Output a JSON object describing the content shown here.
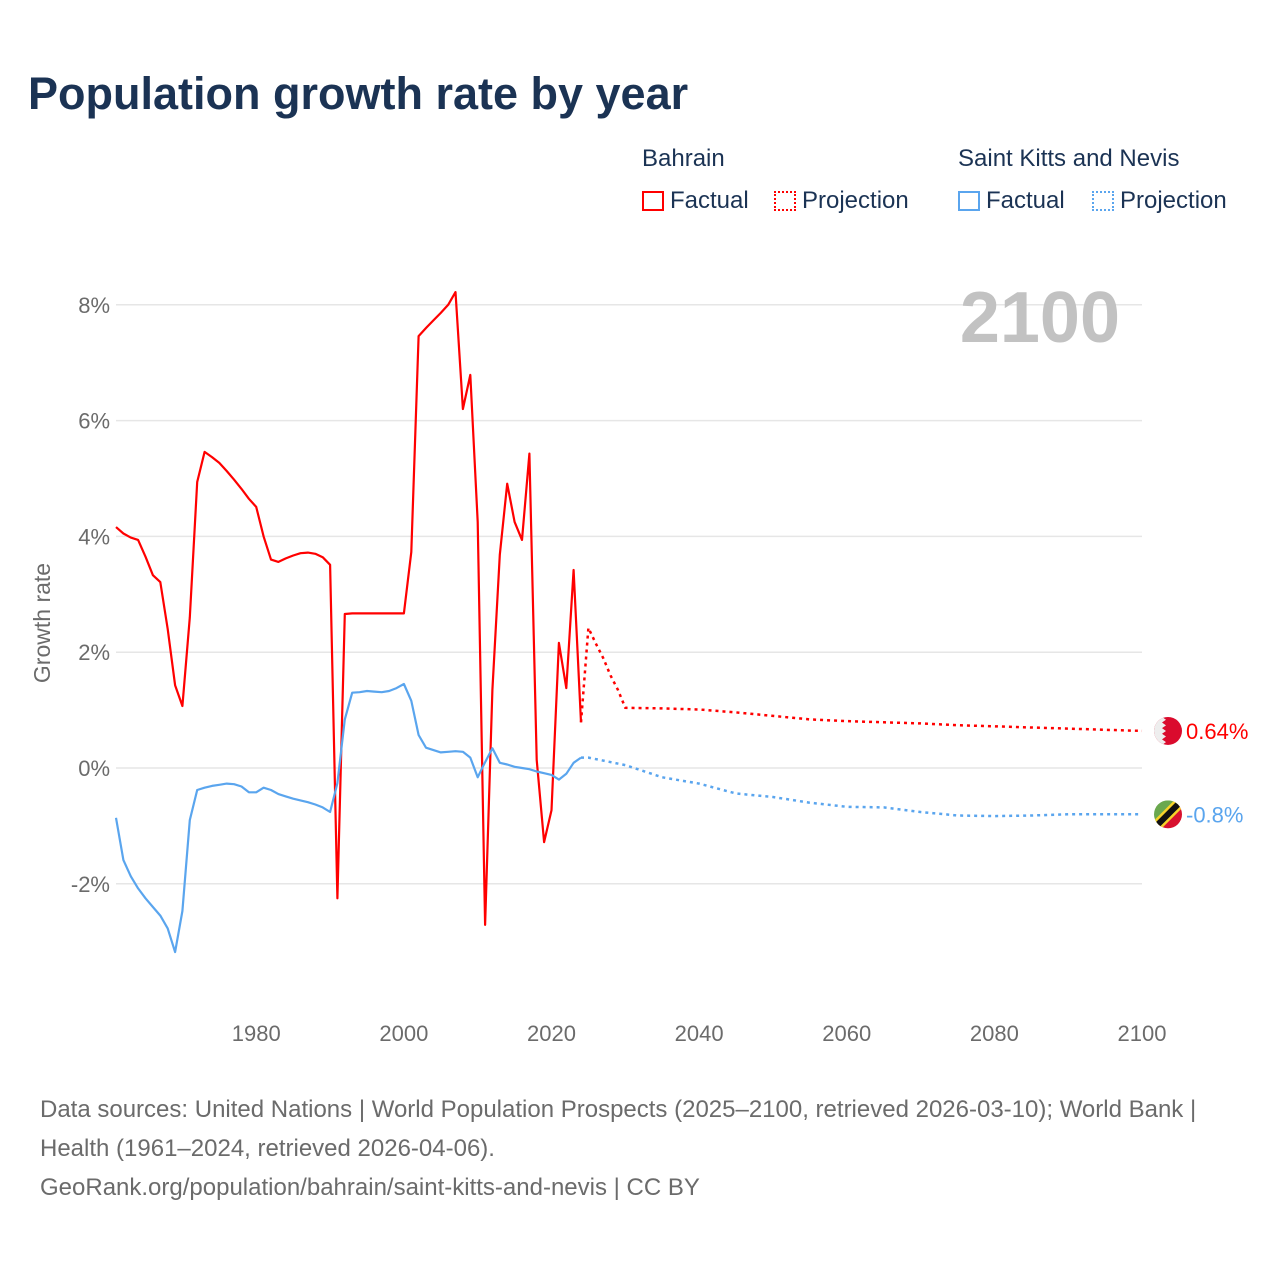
{
  "title": "Population growth rate by year",
  "legend": {
    "groups": [
      {
        "name": "Bahrain",
        "factual": "Factual",
        "projection": "Projection"
      },
      {
        "name": "Saint Kitts and Nevis",
        "factual": "Factual",
        "projection": "Projection"
      }
    ]
  },
  "footer": {
    "line1": "Data sources: United Nations | World Population Prospects (2025–2100, retrieved 2026-03-10); World Bank | Health (1961–2024, retrieved 2026-04-06).",
    "line2": "GeoRank.org/population/bahrain/saint-kitts-and-nevis | CC BY"
  },
  "chart_data": {
    "type": "line",
    "title": "Population growth rate by year",
    "xlabel": "",
    "ylabel": "Growth rate",
    "year_watermark": "2100",
    "xlim": [
      1961,
      2100
    ],
    "ylim": [
      -4,
      9
    ],
    "x_ticks": [
      1980,
      2000,
      2020,
      2040,
      2060,
      2080,
      2100
    ],
    "y_ticks": [
      -2,
      0,
      2,
      4,
      6,
      8
    ],
    "y_tick_labels": [
      "-2%",
      "0%",
      "2%",
      "4%",
      "6%",
      "8%"
    ],
    "grid": true,
    "series": [
      {
        "name": "Bahrain",
        "color": "#ff0000",
        "end_label": "0.64%",
        "flag": "bahrain-flag",
        "factual": {
          "x": [
            1961,
            1962,
            1963,
            1964,
            1965,
            1966,
            1967,
            1968,
            1969,
            1970,
            1971,
            1972,
            1973,
            1974,
            1975,
            1976,
            1977,
            1978,
            1979,
            1980,
            1981,
            1982,
            1983,
            1984,
            1985,
            1986,
            1987,
            1988,
            1989,
            1990,
            1991,
            1992,
            1993,
            1994,
            1995,
            1996,
            1997,
            1998,
            1999,
            2000,
            2001,
            2002,
            2003,
            2004,
            2005,
            2006,
            2007,
            2008,
            2009,
            2010,
            2011,
            2012,
            2013,
            2014,
            2015,
            2016,
            2017,
            2018,
            2019,
            2020,
            2021,
            2022,
            2023,
            2024
          ],
          "y": [
            4.16,
            4.05,
            3.98,
            3.94,
            3.65,
            3.33,
            3.21,
            2.4,
            1.43,
            1.07,
            2.6,
            4.94,
            5.46,
            5.37,
            5.27,
            5.13,
            4.98,
            4.82,
            4.65,
            4.51,
            4.0,
            3.6,
            3.56,
            3.62,
            3.67,
            3.71,
            3.72,
            3.7,
            3.64,
            3.51,
            -2.25,
            2.66,
            2.67,
            2.67,
            2.67,
            2.67,
            2.67,
            2.67,
            2.67,
            2.67,
            3.73,
            7.46,
            7.6,
            7.73,
            7.86,
            8.0,
            8.22,
            6.2,
            6.79,
            4.25,
            -2.71,
            1.35,
            3.68,
            4.91,
            4.25,
            3.94,
            5.43,
            0.14,
            -1.28,
            -0.73,
            2.16,
            1.38,
            3.42,
            0.79
          ]
        },
        "projection": {
          "x": [
            2024,
            2025,
            2026,
            2027,
            2028,
            2029,
            2030,
            2035,
            2040,
            2045,
            2050,
            2055,
            2060,
            2065,
            2070,
            2075,
            2080,
            2085,
            2090,
            2095,
            2100
          ],
          "y": [
            0.79,
            2.42,
            2.15,
            1.9,
            1.6,
            1.35,
            1.04,
            1.03,
            1.01,
            0.96,
            0.9,
            0.84,
            0.81,
            0.79,
            0.77,
            0.74,
            0.72,
            0.7,
            0.68,
            0.66,
            0.64
          ]
        }
      },
      {
        "name": "Saint Kitts and Nevis",
        "color": "#5aa5ee",
        "end_label": "-0.8%",
        "flag": "saint-kitts-and-nevis-flag",
        "factual": {
          "x": [
            1961,
            1962,
            1963,
            1964,
            1965,
            1966,
            1967,
            1968,
            1969,
            1970,
            1971,
            1972,
            1973,
            1974,
            1975,
            1976,
            1977,
            1978,
            1979,
            1980,
            1981,
            1982,
            1983,
            1984,
            1985,
            1986,
            1987,
            1988,
            1989,
            1990,
            1991,
            1992,
            1993,
            1994,
            1995,
            1996,
            1997,
            1998,
            1999,
            2000,
            2001,
            2002,
            2003,
            2004,
            2005,
            2006,
            2007,
            2008,
            2009,
            2010,
            2011,
            2012,
            2013,
            2014,
            2015,
            2016,
            2017,
            2018,
            2019,
            2020,
            2021,
            2022,
            2023,
            2024
          ],
          "y": [
            -0.86,
            -1.59,
            -1.87,
            -2.08,
            -2.25,
            -2.4,
            -2.55,
            -2.77,
            -3.18,
            -2.47,
            -0.9,
            -0.38,
            -0.34,
            -0.31,
            -0.29,
            -0.27,
            -0.28,
            -0.32,
            -0.42,
            -0.42,
            -0.34,
            -0.38,
            -0.45,
            -0.49,
            -0.53,
            -0.56,
            -0.59,
            -0.63,
            -0.68,
            -0.76,
            -0.26,
            0.84,
            1.3,
            1.31,
            1.33,
            1.32,
            1.31,
            1.33,
            1.38,
            1.45,
            1.16,
            0.57,
            0.35,
            0.31,
            0.27,
            0.28,
            0.29,
            0.28,
            0.18,
            -0.16,
            0.1,
            0.34,
            0.09,
            0.06,
            0.02,
            0.0,
            -0.02,
            -0.06,
            -0.09,
            -0.12,
            -0.2,
            -0.1,
            0.09,
            0.18
          ]
        },
        "projection": {
          "x": [
            2024,
            2025,
            2030,
            2035,
            2040,
            2045,
            2050,
            2055,
            2060,
            2065,
            2070,
            2075,
            2080,
            2085,
            2090,
            2095,
            2100
          ],
          "y": [
            0.18,
            0.18,
            0.05,
            -0.16,
            -0.27,
            -0.44,
            -0.5,
            -0.6,
            -0.67,
            -0.68,
            -0.76,
            -0.82,
            -0.83,
            -0.82,
            -0.8,
            -0.8,
            -0.8
          ]
        }
      }
    ]
  }
}
